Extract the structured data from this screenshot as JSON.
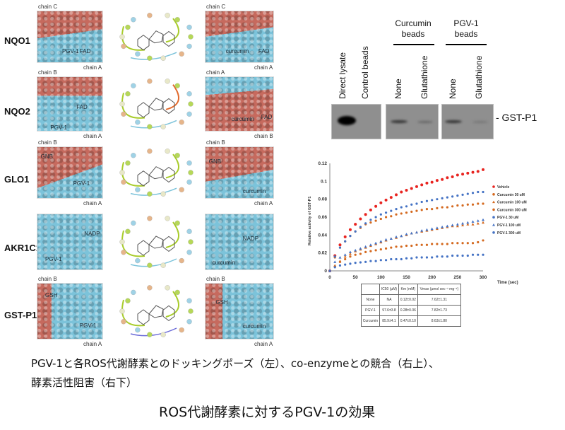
{
  "docking": [
    {
      "enzyme": "NQO1",
      "left": {
        "top": "chain C",
        "bottom": "chain A",
        "labels": [
          "PGV-1",
          "FAD"
        ]
      },
      "right": {
        "top": "chain C",
        "bottom": "chain A",
        "labels": [
          "curcumin",
          "FAD"
        ]
      }
    },
    {
      "enzyme": "NQO2",
      "left": {
        "top": "chain B",
        "bottom": "chain A",
        "labels": [
          "FAD",
          "PGV-1"
        ]
      },
      "right": {
        "top": "chain A",
        "bottom": "chain B",
        "labels": [
          "curcumin",
          "FAD"
        ]
      }
    },
    {
      "enzyme": "GLO1",
      "left": {
        "top": "chain B",
        "bottom": "chain A",
        "labels": [
          "GNB",
          "PGV-1"
        ]
      },
      "right": {
        "top": "chain B",
        "bottom": "chain A",
        "labels": [
          "GNB",
          "curcumin"
        ]
      }
    },
    {
      "enzyme": "AKR1C1",
      "left": {
        "top": "",
        "bottom": "",
        "labels": [
          "NADP",
          "PGV-1"
        ]
      },
      "right": {
        "top": "",
        "bottom": "",
        "labels": [
          "NADP",
          "curcumin"
        ]
      }
    },
    {
      "enzyme": "GST-P1",
      "left": {
        "top": "chain B",
        "bottom": "chain A",
        "labels": [
          "GSH",
          "PGV-1"
        ]
      },
      "right": {
        "top": "chain B",
        "bottom": "chain A",
        "labels": [
          "GSH",
          "curcumin"
        ]
      }
    }
  ],
  "blot": {
    "lanes": [
      "Direct lysate",
      "Control beads",
      "None",
      "Glutathione",
      "None",
      "Glutathione"
    ],
    "groups": [
      "Curcumin beads",
      "PGV-1 beads"
    ],
    "band_label": "- GST-P1"
  },
  "chart_data": {
    "type": "scatter",
    "xlabel": "Time (sec)",
    "ylabel": "Relative activity of GST-P1",
    "xlim": [
      0,
      300
    ],
    "ylim": [
      0,
      0.12
    ],
    "xticks": [
      "0",
      "50",
      "100",
      "150",
      "200",
      "250",
      "300"
    ],
    "yticks": [
      "0",
      "0.02",
      "0.04",
      "0.06",
      "0.08",
      "0.1",
      "0.12"
    ],
    "legend_position": "right",
    "grid": false,
    "x": [
      0,
      10,
      20,
      30,
      40,
      50,
      60,
      70,
      80,
      90,
      100,
      110,
      120,
      130,
      140,
      150,
      160,
      170,
      180,
      190,
      200,
      210,
      220,
      230,
      240,
      250,
      260,
      270,
      280,
      290,
      300
    ],
    "series": [
      {
        "name": "Vehicle",
        "color": "#e8231f",
        "marker": "circle",
        "values": [
          0,
          0.017,
          0.029,
          0.038,
          0.046,
          0.052,
          0.058,
          0.063,
          0.068,
          0.072,
          0.076,
          0.079,
          0.082,
          0.085,
          0.088,
          0.09,
          0.092,
          0.094,
          0.096,
          0.098,
          0.099,
          0.101,
          0.102,
          0.104,
          0.105,
          0.107,
          0.108,
          0.109,
          0.11,
          0.111,
          0.113
        ]
      },
      {
        "name": "Curcumin 30 uM",
        "color": "#d4691f",
        "marker": "circle",
        "values": [
          0,
          0.015,
          0.026,
          0.033,
          0.039,
          0.044,
          0.048,
          0.052,
          0.054,
          0.056,
          0.058,
          0.06,
          0.061,
          0.063,
          0.064,
          0.065,
          0.066,
          0.067,
          0.068,
          0.069,
          0.069,
          0.07,
          0.071,
          0.071,
          0.072,
          0.073,
          0.073,
          0.074,
          0.074,
          0.075,
          0.075
        ]
      },
      {
        "name": "Curcumin 100 uM",
        "color": "#d4691f",
        "marker": "triangle",
        "values": [
          0,
          0.006,
          0.011,
          0.016,
          0.019,
          0.022,
          0.024,
          0.026,
          0.028,
          0.03,
          0.032,
          0.034,
          0.036,
          0.037,
          0.039,
          0.04,
          0.042,
          0.043,
          0.044,
          0.045,
          0.046,
          0.047,
          0.048,
          0.049,
          0.05,
          0.05,
          0.051,
          0.052,
          0.052,
          0.053,
          0.054
        ]
      },
      {
        "name": "Curcumin 300 uM",
        "color": "#d4691f",
        "marker": "circle",
        "values": [
          0,
          0.005,
          0.01,
          0.013,
          0.016,
          0.018,
          0.019,
          0.021,
          0.022,
          0.023,
          0.024,
          0.025,
          0.026,
          0.027,
          0.027,
          0.028,
          0.028,
          0.029,
          0.029,
          0.029,
          0.03,
          0.03,
          0.03,
          0.03,
          0.031,
          0.031,
          0.031,
          0.031,
          0.031,
          0.032,
          0.034
        ]
      },
      {
        "name": "PGV-1 30 uM",
        "color": "#4472c4",
        "marker": "circle",
        "values": [
          0,
          0.016,
          0.026,
          0.033,
          0.039,
          0.044,
          0.049,
          0.053,
          0.057,
          0.06,
          0.063,
          0.065,
          0.067,
          0.069,
          0.071,
          0.072,
          0.074,
          0.075,
          0.077,
          0.078,
          0.079,
          0.08,
          0.081,
          0.082,
          0.083,
          0.084,
          0.085,
          0.086,
          0.087,
          0.088,
          0.088
        ]
      },
      {
        "name": "PGV-1 100 uM",
        "color": "#4472c4",
        "marker": "triangle",
        "values": [
          0,
          0.01,
          0.015,
          0.018,
          0.021,
          0.023,
          0.025,
          0.027,
          0.029,
          0.031,
          0.033,
          0.035,
          0.036,
          0.038,
          0.039,
          0.041,
          0.042,
          0.043,
          0.045,
          0.046,
          0.047,
          0.048,
          0.049,
          0.05,
          0.051,
          0.052,
          0.053,
          0.054,
          0.055,
          0.056,
          0.057
        ]
      },
      {
        "name": "PGV-1 300 uM",
        "color": "#4472c4",
        "marker": "circle",
        "values": [
          0,
          0.004,
          0.006,
          0.007,
          0.008,
          0.009,
          0.0095,
          0.01,
          0.011,
          0.011,
          0.012,
          0.012,
          0.013,
          0.013,
          0.013,
          0.014,
          0.014,
          0.015,
          0.015,
          0.015,
          0.015,
          0.016,
          0.016,
          0.016,
          0.017,
          0.017,
          0.017,
          0.017,
          0.018,
          0.018,
          0.018
        ]
      }
    ]
  },
  "table": {
    "headers": [
      "",
      "IC50 (µM)",
      "Km (mM)",
      "Vmax (µmol sec⁻¹ mg⁻¹)"
    ],
    "rows": [
      [
        "None",
        "NA",
        "0.12±0.02",
        "7.62±1.31"
      ],
      [
        "PGV-1",
        "97.6±3.8",
        "0.28±0.06",
        "7.82±1.73"
      ],
      [
        "Curcumin",
        "85.9±4.1",
        "0.47±0.10",
        "8.63±1.80"
      ]
    ]
  },
  "caption": {
    "line1": "PGV-1と各ROS代謝酵素とのドッキングポーズ（左）、co-enzymeとの競合（右上）、",
    "line2": "酵素活性阻害（右下）",
    "title": "ROS代謝酵素に対するPGV-1の効果"
  }
}
